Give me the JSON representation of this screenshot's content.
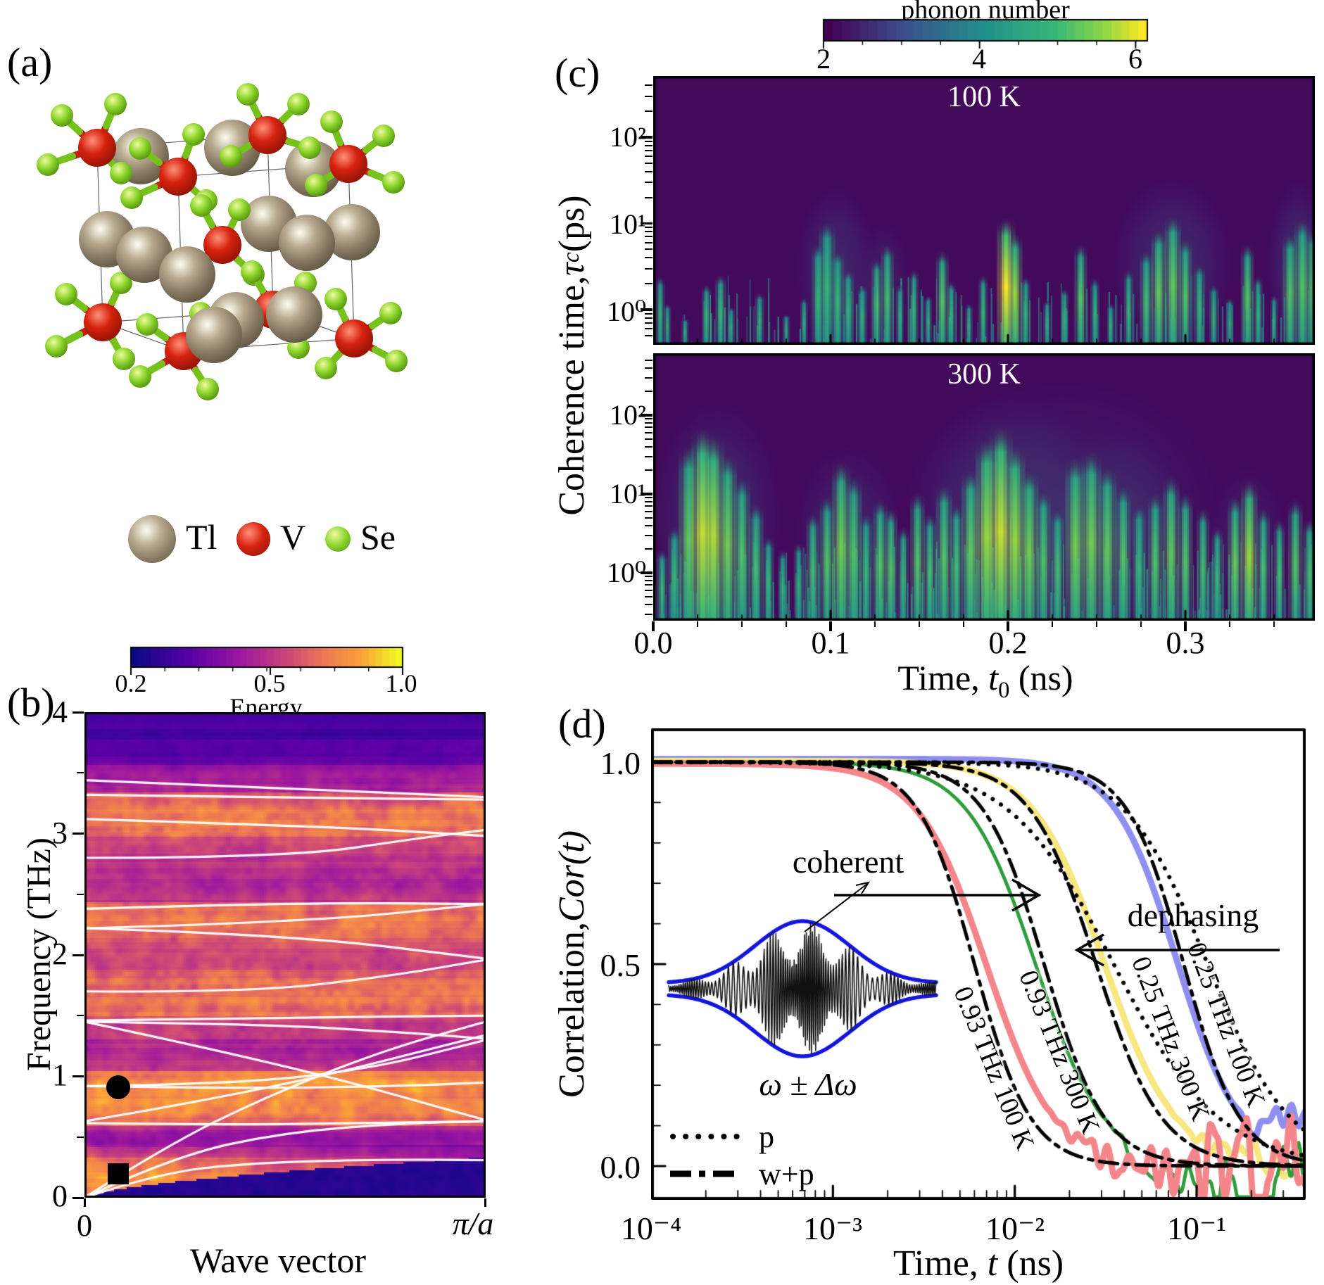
{
  "figure": {
    "background": "#ffffff"
  },
  "panels": {
    "a": {
      "label": "(a)",
      "legend": [
        {
          "element": "Tl",
          "color": "#9a8c76"
        },
        {
          "element": "V",
          "color": "#c81f10"
        },
        {
          "element": "Se",
          "color": "#7fd41f"
        }
      ]
    },
    "b": {
      "label": "(b)",
      "xlabel": "Wave vector",
      "ylabel": "Frequency (THz)"
    },
    "c": {
      "label": "(c)",
      "ylabel_parts": {
        "pre": "Coherence time, ",
        "symbol": "τ",
        "sub": "c",
        "post": " (ps)"
      },
      "xlabel_parts": {
        "pre": "Time, ",
        "symbol": "t",
        "sub": "0",
        "post": " (ns)"
      },
      "xticklabels": [
        "0.0",
        "0.1",
        "0.2",
        "0.3"
      ]
    },
    "d": {
      "label": "(d)"
    }
  },
  "chart_data": [
    {
      "id": "panel-b-phonon-spectral-energy",
      "type": "heatmap",
      "xlabel": "Wave vector",
      "xticklabels": [
        "0",
        "π/a"
      ],
      "ylabel": "Frequency (THz)",
      "yticklabels": [
        "4",
        "3",
        "2",
        "1",
        "0"
      ],
      "ylim_thz": [
        0,
        4
      ],
      "colorbar": {
        "label": "Energy",
        "ticks": [
          "0.2",
          "0.5",
          "1.0"
        ],
        "colormap": "plasma"
      },
      "markers": [
        {
          "shape": "circle",
          "wavevector_frac": 0.085,
          "freq_thz": 0.91
        },
        {
          "shape": "square",
          "wavevector_frac": 0.085,
          "freq_thz": 0.2
        }
      ],
      "band_intensity_profile": [
        [
          0.0,
          0.1,
          0.8
        ],
        [
          0.1,
          0.34,
          0.82
        ],
        [
          0.34,
          0.42,
          0.55
        ],
        [
          0.42,
          0.6,
          0.38
        ],
        [
          0.6,
          0.84,
          0.75
        ],
        [
          0.84,
          1.06,
          0.8
        ],
        [
          1.06,
          1.32,
          0.45
        ],
        [
          1.32,
          1.5,
          0.55
        ],
        [
          1.5,
          1.82,
          0.72
        ],
        [
          1.82,
          2.14,
          0.58
        ],
        [
          2.14,
          2.45,
          0.74
        ],
        [
          2.45,
          2.72,
          0.46
        ],
        [
          2.72,
          2.98,
          0.52
        ],
        [
          2.98,
          3.34,
          0.74
        ],
        [
          3.34,
          3.58,
          0.4
        ],
        [
          3.58,
          3.78,
          0.22
        ],
        [
          3.78,
          4.0,
          0.16
        ]
      ],
      "dispersion_branches_thz": [
        [
          [
            0,
            0
          ],
          [
            0.18,
            0.2
          ],
          [
            0.42,
            0.29
          ],
          [
            0.75,
            0.315
          ],
          [
            1,
            0.31
          ]
        ],
        [
          [
            0,
            0
          ],
          [
            0.22,
            0.34
          ],
          [
            0.5,
            0.54
          ],
          [
            0.8,
            0.615
          ],
          [
            1,
            0.63
          ]
        ],
        [
          [
            0,
            0
          ],
          [
            0.2,
            0.42
          ],
          [
            0.45,
            0.83
          ],
          [
            0.75,
            1.22
          ],
          [
            1,
            1.45
          ]
        ],
        [
          [
            0,
            0.615
          ],
          [
            0.35,
            0.6
          ],
          [
            0.7,
            0.615
          ],
          [
            1,
            0.63
          ]
        ],
        [
          [
            0,
            0.63
          ],
          [
            0.45,
            0.88
          ],
          [
            1,
            1.34
          ]
        ],
        [
          [
            0,
            0.92
          ],
          [
            0.35,
            0.935
          ],
          [
            0.7,
            1.05
          ],
          [
            1,
            1.3
          ]
        ],
        [
          [
            0,
            0.92
          ],
          [
            0.4,
            0.9
          ],
          [
            0.8,
            0.92
          ],
          [
            1,
            0.95
          ]
        ],
        [
          [
            0,
            1.45
          ],
          [
            0.5,
            1.1
          ],
          [
            1,
            0.64
          ]
        ],
        [
          [
            0,
            1.45
          ],
          [
            0.45,
            1.43
          ],
          [
            0.8,
            1.36
          ],
          [
            1,
            1.31
          ]
        ],
        [
          [
            0,
            1.46
          ],
          [
            0.5,
            1.485
          ],
          [
            1,
            1.5
          ]
        ],
        [
          [
            0,
            1.7
          ],
          [
            0.4,
            1.69
          ],
          [
            0.75,
            1.82
          ],
          [
            1,
            1.96
          ]
        ],
        [
          [
            0,
            2.22
          ],
          [
            0.5,
            2.17
          ],
          [
            1,
            1.97
          ]
        ],
        [
          [
            0,
            2.22
          ],
          [
            0.55,
            2.27
          ],
          [
            1,
            2.42
          ]
        ],
        [
          [
            0,
            2.38
          ],
          [
            0.5,
            2.43
          ],
          [
            1,
            2.42
          ]
        ],
        [
          [
            0,
            2.8
          ],
          [
            0.5,
            2.8
          ],
          [
            0.85,
            2.97
          ],
          [
            1,
            3.03
          ]
        ],
        [
          [
            0,
            3.12
          ],
          [
            0.6,
            3.06
          ],
          [
            1,
            2.98
          ]
        ],
        [
          [
            0,
            3.32
          ],
          [
            0.5,
            3.295
          ],
          [
            1,
            3.28
          ]
        ],
        [
          [
            0,
            3.44
          ],
          [
            0.5,
            3.375
          ],
          [
            1,
            3.3
          ]
        ]
      ]
    },
    {
      "id": "panel-c-coherence-100K",
      "type": "heatmap",
      "title": "100 K",
      "colormap": "viridis",
      "xlim_ns": [
        0,
        0.373
      ],
      "yscale": "log",
      "yticklabels": [
        "10²",
        "10¹",
        "10⁰"
      ],
      "colorbar": {
        "label": "phonon number",
        "ticks": [
          "2",
          "4",
          "6"
        ],
        "colormap": "viridis"
      },
      "streaks_t_top_peak_w": [
        [
          0.004,
          2.5,
          0.45,
          5
        ],
        [
          0.008,
          1.2,
          0.4,
          4
        ],
        [
          0.018,
          0.8,
          0.35,
          4
        ],
        [
          0.03,
          2,
          0.5,
          5
        ],
        [
          0.038,
          2.6,
          0.5,
          6
        ],
        [
          0.044,
          1.1,
          0.4,
          4
        ],
        [
          0.06,
          1.6,
          0.45,
          5
        ],
        [
          0.075,
          0.9,
          0.35,
          4
        ],
        [
          0.085,
          1.4,
          0.4,
          4
        ],
        [
          0.093,
          6,
          0.5,
          7
        ],
        [
          0.098,
          11,
          0.5,
          9
        ],
        [
          0.104,
          5,
          0.5,
          7
        ],
        [
          0.11,
          3,
          0.45,
          6
        ],
        [
          0.118,
          2,
          0.4,
          5
        ],
        [
          0.126,
          4,
          0.55,
          6
        ],
        [
          0.132,
          6,
          0.55,
          7
        ],
        [
          0.139,
          2,
          0.4,
          4
        ],
        [
          0.147,
          3,
          0.5,
          5
        ],
        [
          0.155,
          1.5,
          0.4,
          4
        ],
        [
          0.163,
          5,
          0.6,
          7
        ],
        [
          0.168,
          2.2,
          0.45,
          5
        ],
        [
          0.178,
          1.2,
          0.4,
          4
        ],
        [
          0.186,
          2.6,
          0.5,
          5
        ],
        [
          0.199,
          12,
          1.0,
          10
        ],
        [
          0.204,
          8,
          0.8,
          8
        ],
        [
          0.21,
          2.5,
          0.5,
          5
        ],
        [
          0.222,
          1.3,
          0.4,
          4
        ],
        [
          0.232,
          1.8,
          0.45,
          4
        ],
        [
          0.241,
          6,
          0.6,
          7
        ],
        [
          0.249,
          2.4,
          0.45,
          5
        ],
        [
          0.258,
          1.2,
          0.4,
          4
        ],
        [
          0.268,
          3,
          0.5,
          5
        ],
        [
          0.278,
          5,
          0.55,
          7
        ],
        [
          0.285,
          9,
          0.65,
          8
        ],
        [
          0.293,
          13,
          0.65,
          9
        ],
        [
          0.3,
          7,
          0.6,
          7
        ],
        [
          0.308,
          3.5,
          0.5,
          6
        ],
        [
          0.316,
          2,
          0.45,
          5
        ],
        [
          0.325,
          1.4,
          0.4,
          4
        ],
        [
          0.335,
          6,
          0.6,
          7
        ],
        [
          0.341,
          2.5,
          0.45,
          5
        ],
        [
          0.35,
          1.5,
          0.4,
          4
        ],
        [
          0.359,
          8,
          0.6,
          8
        ],
        [
          0.366,
          12,
          0.6,
          9
        ],
        [
          0.372,
          9,
          0.6,
          8
        ]
      ],
      "haze_t0_t1_top_level": [
        [
          0.088,
          0.118,
          22,
          0.45
        ],
        [
          0.27,
          0.315,
          28,
          0.5
        ],
        [
          0.352,
          0.375,
          26,
          0.5
        ],
        [
          0.12,
          0.14,
          9,
          0.3
        ]
      ],
      "hair_count": 170
    },
    {
      "id": "panel-c-coherence-300K",
      "type": "heatmap",
      "title": "300 K",
      "colormap": "viridis",
      "xlim_ns": [
        0,
        0.373
      ],
      "yscale": "log",
      "yticklabels": [
        "10²",
        "10¹",
        "10⁰"
      ],
      "streaks_t_top_peak_w": [
        [
          0.005,
          2,
          0.5,
          6
        ],
        [
          0.012,
          4,
          0.5,
          7
        ],
        [
          0.02,
          45,
          0.65,
          11
        ],
        [
          0.028,
          75,
          0.9,
          13
        ],
        [
          0.034,
          60,
          0.85,
          12
        ],
        [
          0.042,
          35,
          0.7,
          10
        ],
        [
          0.05,
          18,
          0.6,
          9
        ],
        [
          0.058,
          8,
          0.55,
          8
        ],
        [
          0.065,
          3,
          0.5,
          6
        ],
        [
          0.073,
          2,
          0.45,
          5
        ],
        [
          0.082,
          2.5,
          0.45,
          5
        ],
        [
          0.09,
          6,
          0.55,
          7
        ],
        [
          0.098,
          10,
          0.6,
          8
        ],
        [
          0.106,
          28,
          0.7,
          10
        ],
        [
          0.113,
          18,
          0.6,
          9
        ],
        [
          0.12,
          6,
          0.5,
          7
        ],
        [
          0.128,
          9,
          0.6,
          8
        ],
        [
          0.134,
          7,
          0.6,
          7
        ],
        [
          0.141,
          4,
          0.5,
          6
        ],
        [
          0.149,
          11,
          0.6,
          8
        ],
        [
          0.156,
          6,
          0.55,
          7
        ],
        [
          0.164,
          14,
          0.6,
          9
        ],
        [
          0.171,
          8,
          0.55,
          7
        ],
        [
          0.179,
          22,
          0.65,
          10
        ],
        [
          0.188,
          55,
          0.8,
          12
        ],
        [
          0.196,
          80,
          0.9,
          13
        ],
        [
          0.204,
          45,
          0.8,
          11
        ],
        [
          0.212,
          22,
          0.7,
          10
        ],
        [
          0.22,
          12,
          0.6,
          8
        ],
        [
          0.228,
          7,
          0.55,
          7
        ],
        [
          0.238,
          32,
          0.7,
          11
        ],
        [
          0.247,
          38,
          0.7,
          11
        ],
        [
          0.256,
          24,
          0.65,
          10
        ],
        [
          0.265,
          14,
          0.6,
          8
        ],
        [
          0.274,
          8,
          0.5,
          7
        ],
        [
          0.283,
          11,
          0.6,
          8
        ],
        [
          0.292,
          18,
          0.65,
          9
        ],
        [
          0.3,
          11,
          0.6,
          8
        ],
        [
          0.31,
          7,
          0.55,
          7
        ],
        [
          0.318,
          4,
          0.5,
          6
        ],
        [
          0.328,
          10,
          0.65,
          8
        ],
        [
          0.336,
          16,
          0.8,
          9
        ],
        [
          0.344,
          7,
          0.55,
          7
        ],
        [
          0.353,
          5,
          0.55,
          6
        ],
        [
          0.362,
          9,
          0.6,
          8
        ],
        [
          0.37,
          5,
          0.55,
          7
        ]
      ],
      "haze_t0_t1_top_level": [
        [
          0.012,
          0.06,
          110,
          0.5
        ],
        [
          0.09,
          0.13,
          32,
          0.4
        ],
        [
          0.165,
          0.24,
          130,
          0.45
        ],
        [
          0.17,
          0.29,
          200,
          0.25
        ],
        [
          0.235,
          0.29,
          55,
          0.4
        ],
        [
          0.32,
          0.35,
          18,
          0.3
        ]
      ],
      "hair_count": 300
    },
    {
      "id": "panel-d-correlation-decay",
      "type": "line",
      "xlabel_parts": {
        "pre": "Time, ",
        "symbol": "t",
        "post": " (ns)"
      },
      "ylabel_parts": {
        "pre": "Correlation, ",
        "symbol": "Cor(t)"
      },
      "xticklabels": [
        "10⁻⁴",
        "10⁻³",
        "10⁻²",
        "10⁻¹"
      ],
      "yticklabels": [
        "1.0",
        "0.5",
        "0.0"
      ],
      "xlim_ns": [
        0.0001,
        0.4
      ],
      "series": [
        {
          "name": "0.93 THz 100 K",
          "color": "#f4858a",
          "t50_ns": 0.007,
          "steepness": 2.3,
          "linewidth": 9,
          "tail_noise": 0.065
        },
        {
          "name": "0.93 THz 300 K",
          "color": "#2f9c3d",
          "t50_ns": 0.013,
          "steepness": 2.3,
          "linewidth": 5,
          "tail_noise": 0.05
        },
        {
          "name": "0.25 THz 300 K",
          "color": "#f8e780",
          "t50_ns": 0.031,
          "steepness": 2.2,
          "linewidth": 9,
          "tail_noise": 0.02
        },
        {
          "name": "0.25 THz 100 K",
          "color": "#8f8ff0",
          "t50_ns": 0.078,
          "steepness": 2.5,
          "linewidth": 9,
          "tail_noise": 0.03
        }
      ],
      "wp_series": [
        {
          "t50_ns": 0.006,
          "steepness": 2.8
        },
        {
          "t50_ns": 0.0145,
          "steepness": 2.6
        },
        {
          "t50_ns": 0.028,
          "steepness": 2.4
        },
        {
          "t50_ns": 0.085,
          "steepness": 2.8
        }
      ],
      "p_series": [
        {
          "t50_ns": 0.035,
          "steepness": 1.5
        },
        {
          "t50_ns": 0.115,
          "steepness": 1.9
        }
      ],
      "legend": [
        {
          "style": "dotted",
          "label": "p"
        },
        {
          "style": "dashdot",
          "label": "w+p"
        }
      ],
      "annotations": [
        {
          "text": "coherent",
          "arrow_dir": "right"
        },
        {
          "text": "dephasing",
          "arrow_dir": "left"
        }
      ],
      "inset": {
        "label": "ω ± Δω",
        "envelope_color": "#1414dc"
      }
    }
  ]
}
